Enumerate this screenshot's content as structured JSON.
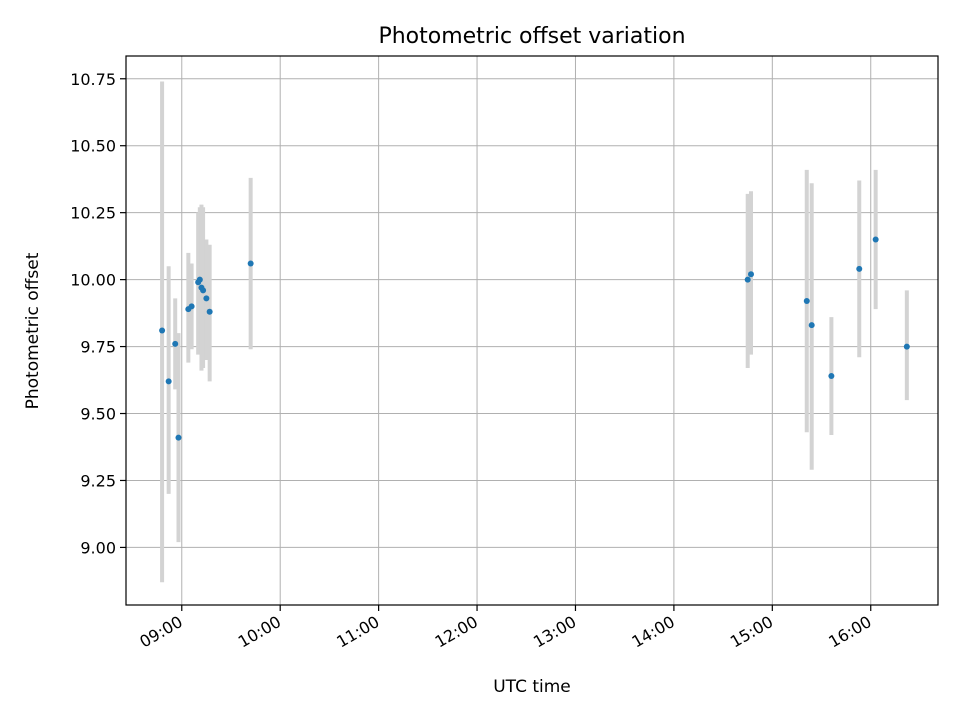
{
  "chart_data": {
    "type": "scatter",
    "title": "Photometric offset variation",
    "xlabel": "UTC time",
    "ylabel": "Photometric offset",
    "x_ticks": [
      "09:00",
      "10:00",
      "11:00",
      "12:00",
      "13:00",
      "14:00",
      "15:00",
      "16:00"
    ],
    "x_tick_minutes": [
      540,
      600,
      660,
      720,
      780,
      840,
      900,
      960
    ],
    "y_ticks": [
      "9.00",
      "9.25",
      "9.50",
      "9.75",
      "10.00",
      "10.25",
      "10.50",
      "10.75"
    ],
    "y_tick_values": [
      9.0,
      9.25,
      9.5,
      9.75,
      10.0,
      10.25,
      10.5,
      10.75
    ],
    "xlim_minutes": [
      506,
      1001
    ],
    "ylim": [
      8.785,
      10.835
    ],
    "grid": true,
    "point_color": "#1f77b4",
    "error_color": "#d3d3d3",
    "points": [
      {
        "t": "08:48",
        "y": 9.81,
        "lo": 8.87,
        "hi": 10.74
      },
      {
        "t": "08:52",
        "y": 9.62,
        "lo": 9.2,
        "hi": 10.05
      },
      {
        "t": "08:56",
        "y": 9.76,
        "lo": 9.59,
        "hi": 9.93
      },
      {
        "t": "08:58",
        "y": 9.41,
        "lo": 9.02,
        "hi": 9.8
      },
      {
        "t": "09:04",
        "y": 9.89,
        "lo": 9.69,
        "hi": 10.1
      },
      {
        "t": "09:06",
        "y": 9.9,
        "lo": 9.74,
        "hi": 10.06
      },
      {
        "t": "09:10",
        "y": 9.99,
        "lo": 9.72,
        "hi": 10.25
      },
      {
        "t": "09:11",
        "y": 10.0,
        "lo": 9.75,
        "hi": 10.27
      },
      {
        "t": "09:12",
        "y": 9.97,
        "lo": 9.66,
        "hi": 10.28
      },
      {
        "t": "09:13",
        "y": 9.96,
        "lo": 9.67,
        "hi": 10.27
      },
      {
        "t": "09:15",
        "y": 9.93,
        "lo": 9.7,
        "hi": 10.15
      },
      {
        "t": "09:17",
        "y": 9.88,
        "lo": 9.62,
        "hi": 10.13
      },
      {
        "t": "09:42",
        "y": 10.06,
        "lo": 9.74,
        "hi": 10.38
      },
      {
        "t": "14:45",
        "y": 10.0,
        "lo": 9.67,
        "hi": 10.32
      },
      {
        "t": "14:47",
        "y": 10.02,
        "lo": 9.72,
        "hi": 10.33
      },
      {
        "t": "15:21",
        "y": 9.92,
        "lo": 9.43,
        "hi": 10.41
      },
      {
        "t": "15:24",
        "y": 9.83,
        "lo": 9.29,
        "hi": 10.36
      },
      {
        "t": "15:36",
        "y": 9.64,
        "lo": 9.42,
        "hi": 9.86
      },
      {
        "t": "15:53",
        "y": 10.04,
        "lo": 9.71,
        "hi": 10.37
      },
      {
        "t": "16:03",
        "y": 10.15,
        "lo": 9.89,
        "hi": 10.41
      },
      {
        "t": "16:22",
        "y": 9.75,
        "lo": 9.55,
        "hi": 9.96
      }
    ]
  }
}
